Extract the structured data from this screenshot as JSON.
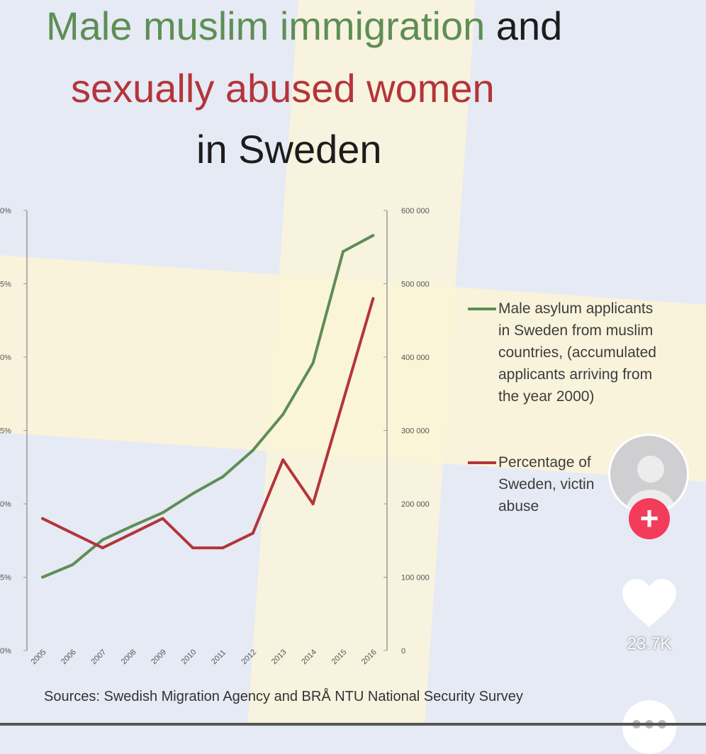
{
  "title": {
    "line1_green": "Male muslim immigration",
    "line1_dark": "and",
    "line2": "sexually abused women",
    "line3": "in Sweden"
  },
  "source": "Sources: Swedish Migration Agency and BRÅ NTU National Security Survey",
  "tiktok": {
    "like_count": "23.7K",
    "follow_icon": "plus-icon",
    "like_icon": "heart-icon",
    "comment_icon": "more-icon"
  },
  "colors": {
    "green": "#5e8e55",
    "red": "#b3353a",
    "follow": "#f23c5a"
  },
  "chart_data": {
    "type": "line",
    "title": "Male muslim immigration and sexually abused women in Sweden",
    "categories": [
      "2005",
      "2006",
      "2007",
      "2008",
      "2009",
      "2010",
      "2011",
      "2012",
      "2013",
      "2014",
      "2015",
      "2016"
    ],
    "left_axis": {
      "ticks": [
        "0%",
        "5%",
        "0%",
        "5%",
        "0%",
        "5%",
        "0%"
      ],
      "ylim": [
        0,
        30
      ]
    },
    "right_axis": {
      "ticks": [
        "600 000",
        "500 000",
        "400 000",
        "300 000",
        "200 000",
        "100 000",
        "0"
      ],
      "ylim": [
        0,
        600000
      ]
    },
    "series": [
      {
        "name": "Male asylum applicants in Sweden from muslim countries, (accumulated applicants arriving from the year 2000)",
        "axis": "right",
        "color": "#5e8e55",
        "values": [
          100000,
          117000,
          151000,
          170000,
          188000,
          214000,
          237000,
          273000,
          322000,
          392000,
          544000,
          566000
        ]
      },
      {
        "name": "Percentage of Sweden, victim abuse",
        "axis": "left",
        "color": "#b3353a",
        "values": [
          9,
          8,
          7,
          8,
          9,
          7,
          7,
          8,
          13,
          10,
          17,
          24
        ]
      }
    ],
    "legend": [
      {
        "lines": [
          "Male asylum applicants",
          "in Sweden from muslim",
          "countries, (accumulated",
          "applicants arriving from",
          "the year 2000)"
        ]
      },
      {
        "lines": [
          "Percentage of",
          "Sweden, victin",
          "abuse"
        ]
      }
    ],
    "legend_position": "right"
  }
}
